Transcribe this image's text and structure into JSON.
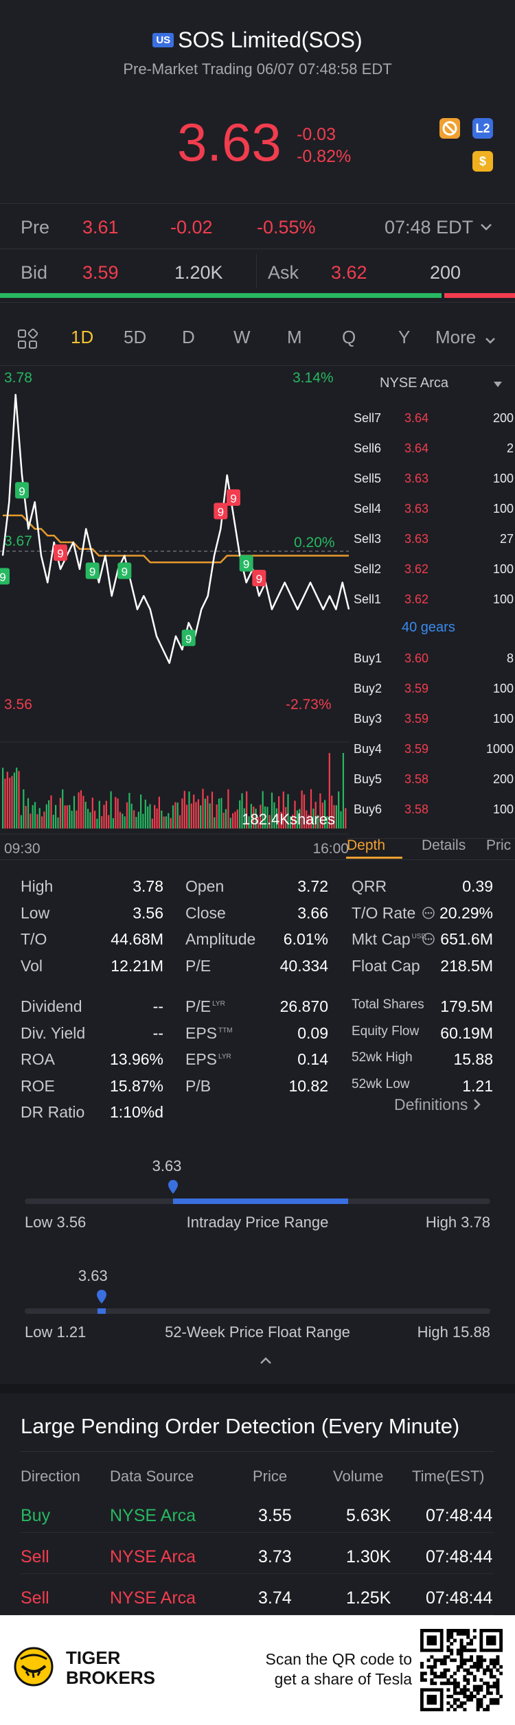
{
  "header": {
    "market_badge": "US",
    "title": "SOS Limited(SOS)",
    "subtitle": "Pre-Market Trading 06/07 07:48:58 EDT",
    "price": "3.63",
    "change": "-0.03",
    "change_pct": "-0.82%",
    "icons": [
      "no-sign-icon",
      "level2-icon",
      "dollar-icon"
    ],
    "icon_labels": {
      "level2": "L2",
      "dollar": "$"
    }
  },
  "pre_row": {
    "label": "Pre",
    "price": "3.61",
    "change": "-0.02",
    "change_pct": "-0.55%",
    "time": "07:48 EDT"
  },
  "bid_ask": {
    "bid_label": "Bid",
    "bid_price": "3.59",
    "bid_size": "1.20K",
    "ask_label": "Ask",
    "ask_price": "3.62",
    "ask_size": "200",
    "bid_ratio": 0.86
  },
  "tabs": {
    "items": [
      "1D",
      "5D",
      "D",
      "W",
      "M",
      "Q",
      "Y",
      "More"
    ],
    "active": "1D"
  },
  "chart": {
    "high_label": "3.78",
    "high_pct": "3.14%",
    "mid_label": "3.67",
    "mid_pct": "0.20%",
    "low_label": "3.56",
    "low_pct": "-2.73%",
    "volume_label": "182.4Kshares",
    "time_start": "09:30",
    "time_end": "16:00",
    "signal_markers": [
      "9",
      "9",
      "9",
      "9",
      "9",
      "9",
      "9",
      "9",
      "9",
      "9"
    ]
  },
  "chart_data": {
    "type": "line",
    "title": "",
    "xlabel": "",
    "ylabel": "",
    "x_range": [
      "09:30",
      "16:00"
    ],
    "ylim": [
      3.56,
      3.78
    ],
    "reference": 3.667,
    "series": [
      {
        "values": [
          3.66,
          3.7,
          3.78,
          3.72,
          3.68,
          3.7,
          3.66,
          3.64,
          3.67,
          3.65,
          3.66,
          3.67,
          3.65,
          3.68,
          3.66,
          3.64,
          3.66,
          3.63,
          3.65,
          3.66,
          3.64,
          3.62,
          3.63,
          3.62,
          3.6,
          3.59,
          3.58,
          3.6,
          3.59,
          3.61,
          3.6,
          3.62,
          3.63,
          3.66,
          3.68,
          3.72,
          3.69,
          3.66,
          3.64,
          3.65,
          3.63,
          3.64,
          3.62,
          3.63,
          3.64,
          3.63,
          3.62,
          3.63,
          3.64,
          3.63,
          3.62,
          3.63,
          3.62,
          3.64,
          3.62
        ]
      },
      {
        "values": [
          3.69,
          3.69,
          3.69,
          3.69,
          3.685,
          3.68,
          3.68,
          3.675,
          3.675,
          3.67,
          3.67,
          3.67,
          3.665,
          3.665,
          3.665,
          3.66,
          3.66,
          3.66,
          3.66,
          3.66,
          3.66,
          3.66,
          3.66,
          3.655,
          3.655,
          3.655,
          3.655,
          3.655,
          3.655,
          3.655,
          3.655,
          3.655,
          3.655,
          3.655,
          3.655,
          3.66,
          3.66,
          3.66,
          3.66,
          3.66,
          3.66,
          3.66,
          3.66,
          3.66,
          3.66,
          3.66,
          3.66,
          3.66,
          3.66,
          3.66,
          3.66,
          3.66,
          3.66,
          3.66,
          3.66
        ]
      }
    ]
  },
  "depth": {
    "exchange": "NYSE Arca",
    "sells": [
      {
        "label": "Sell7",
        "price": "3.64",
        "size": "200"
      },
      {
        "label": "Sell6",
        "price": "3.64",
        "size": "2"
      },
      {
        "label": "Sell5",
        "price": "3.63",
        "size": "100"
      },
      {
        "label": "Sell4",
        "price": "3.63",
        "size": "100"
      },
      {
        "label": "Sell3",
        "price": "3.63",
        "size": "27"
      },
      {
        "label": "Sell2",
        "price": "3.62",
        "size": "100"
      },
      {
        "label": "Sell1",
        "price": "3.62",
        "size": "100"
      }
    ],
    "gears": "40 gears",
    "buys": [
      {
        "label": "Buy1",
        "price": "3.60",
        "size": "8"
      },
      {
        "label": "Buy2",
        "price": "3.59",
        "size": "100"
      },
      {
        "label": "Buy3",
        "price": "3.59",
        "size": "100"
      },
      {
        "label": "Buy4",
        "price": "3.59",
        "size": "1000"
      },
      {
        "label": "Buy5",
        "price": "3.58",
        "size": "200"
      },
      {
        "label": "Buy6",
        "price": "3.58",
        "size": "100"
      }
    ],
    "tabs": [
      "Depth",
      "Details",
      "Pric"
    ]
  },
  "stats": {
    "col1": [
      {
        "label": "High",
        "value": "3.78"
      },
      {
        "label": "Low",
        "value": "3.56"
      },
      {
        "label": "T/O",
        "value": "44.68M"
      },
      {
        "label": "Vol",
        "value": "12.21M"
      }
    ],
    "col2": [
      {
        "label": "Open",
        "value": "3.72"
      },
      {
        "label": "Close",
        "value": "3.66"
      },
      {
        "label": "Amplitude",
        "value": "6.01%"
      },
      {
        "label": "P/E",
        "value": "40.334"
      }
    ],
    "col3": [
      {
        "label": "QRR",
        "value": "0.39"
      },
      {
        "label": "T/O Rate",
        "value": "20.29%"
      },
      {
        "label": "Mkt Cap",
        "sup": "USD",
        "value": "651.6M"
      },
      {
        "label": "Float Cap",
        "value": "218.5M"
      }
    ],
    "col1b": [
      {
        "label": "Dividend",
        "value": "--"
      },
      {
        "label": "Div. Yield",
        "value": "--"
      },
      {
        "label": "ROA",
        "value": "13.96%"
      },
      {
        "label": "ROE",
        "value": "15.87%"
      },
      {
        "label": "DR Ratio",
        "value": "1:10%d"
      }
    ],
    "col2b": [
      {
        "label": "P/E",
        "sup": "LYR",
        "value": "26.870"
      },
      {
        "label": "EPS",
        "sup": "TTM",
        "value": "0.09"
      },
      {
        "label": "EPS",
        "sup": "LYR",
        "value": "0.14"
      },
      {
        "label": "P/B",
        "value": "10.82"
      }
    ],
    "col3b": [
      {
        "label": "Total Shares",
        "value": "179.5M"
      },
      {
        "label": "Equity Flow",
        "value": "60.19M"
      },
      {
        "label": "52wk High",
        "value": "15.88"
      },
      {
        "label": "52wk Low",
        "value": "1.21"
      }
    ],
    "definitions": "Definitions"
  },
  "intraday_range": {
    "current": "3.63",
    "low_label": "Low 3.56",
    "title": "Intraday Price Range",
    "high_label": "High 3.78",
    "position": 0.318,
    "fill_start": 0.318,
    "fill_end": 0.695
  },
  "week52_range": {
    "current": "3.63",
    "low_label": "Low 1.21",
    "title": "52-Week Price Float Range",
    "high_label": "High 15.88",
    "position": 0.165
  },
  "large_orders": {
    "title": "Large Pending Order Detection (Every Minute)",
    "columns": [
      "Direction",
      "Data Source",
      "Price",
      "Volume",
      "Time(EST)"
    ],
    "rows": [
      {
        "direction": "Buy",
        "source": "NYSE Arca",
        "price": "3.55",
        "volume": "5.63K",
        "time": "07:48:44"
      },
      {
        "direction": "Sell",
        "source": "NYSE Arca",
        "price": "3.73",
        "volume": "1.30K",
        "time": "07:48:44"
      },
      {
        "direction": "Sell",
        "source": "NYSE Arca",
        "price": "3.74",
        "volume": "1.25K",
        "time": "07:48:44"
      }
    ]
  },
  "footer": {
    "brand_line1": "TIGER",
    "brand_line2": "BROKERS",
    "cta_line1": "Scan the QR code to",
    "cta_line2": "get a share of Tesla"
  },
  "colors": {
    "up": "#27b862",
    "down": "#f23d4f",
    "accent": "#3a6fe0",
    "ma": "#e89a2c",
    "gold": "#ffb020"
  }
}
